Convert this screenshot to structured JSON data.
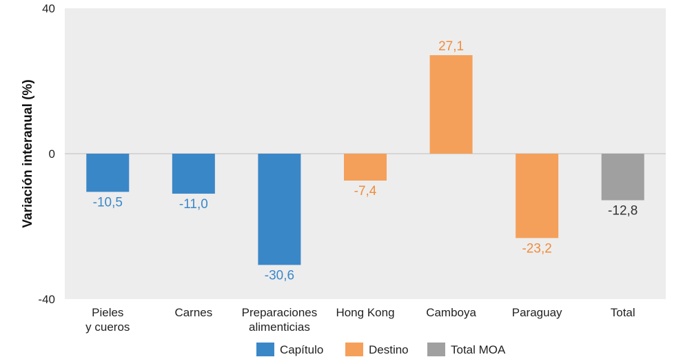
{
  "chart_data": {
    "type": "bar",
    "title": "",
    "xlabel": "",
    "ylabel": "Variación interanual (%)",
    "ylim": [
      -40,
      40
    ],
    "yticks": [
      40,
      0,
      -40
    ],
    "grid": false,
    "legend_position": "bottom",
    "categories": [
      [
        "Pieles",
        "y cueros"
      ],
      [
        "Carnes"
      ],
      [
        "Preparaciones",
        "alimenticias"
      ],
      [
        "Hong Kong"
      ],
      [
        "Camboya"
      ],
      [
        "Paraguay"
      ],
      [
        "Total"
      ]
    ],
    "values": [
      -10.5,
      -11.0,
      -30.6,
      -7.4,
      27.1,
      -23.2,
      -12.8
    ],
    "value_labels": [
      "-10,5",
      "-11,0",
      "-30,6",
      "-7,4",
      "27,1",
      "-23,2",
      "-12,8"
    ],
    "bar_groups": [
      "Capítulo",
      "Capítulo",
      "Capítulo",
      "Destino",
      "Destino",
      "Destino",
      "Total MOA"
    ],
    "legend": [
      {
        "name": "Capítulo",
        "color": "#3a87c8",
        "label_color": "#3a87c8"
      },
      {
        "name": "Destino",
        "color": "#f5a05a",
        "label_color": "#f08c3c"
      },
      {
        "name": "Total MOA",
        "color": "#a0a0a0",
        "label_color": "#333333"
      }
    ],
    "plot_background": "#ededed"
  }
}
